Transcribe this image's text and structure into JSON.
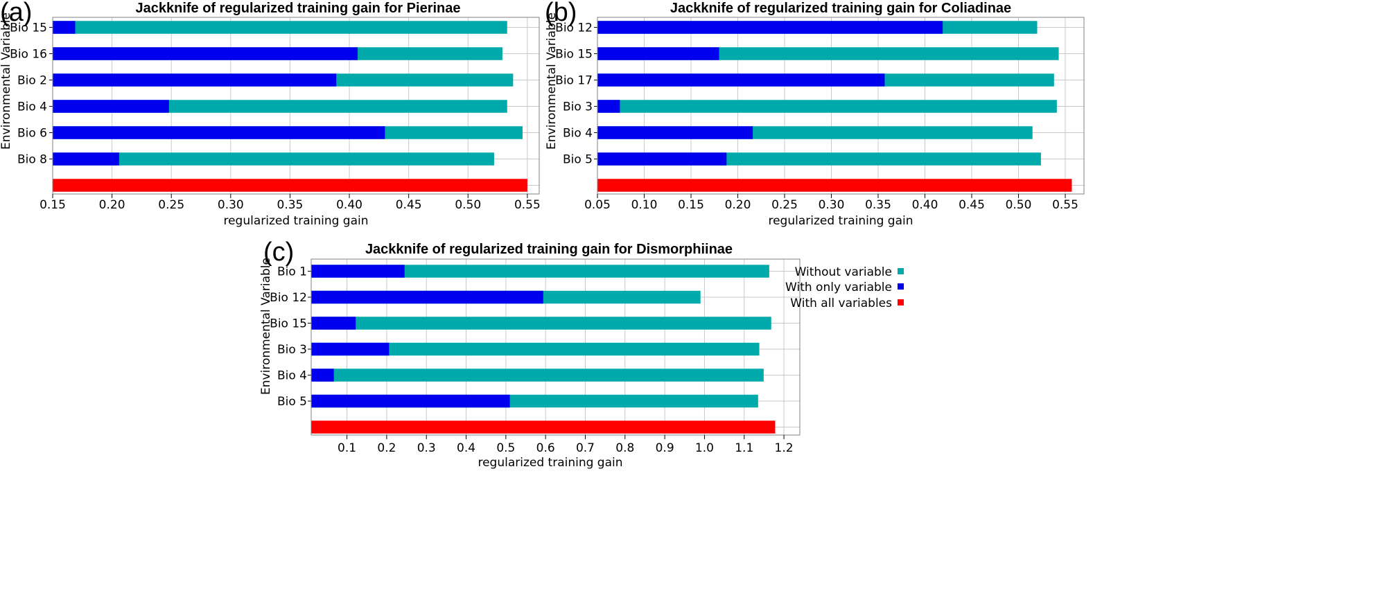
{
  "colors": {
    "without": "#00aaaa",
    "with_only": "#0000ee",
    "with_all": "#ff0000",
    "grid": "#c8c8c8",
    "frame": "#808080"
  },
  "legend": {
    "items": [
      {
        "label": "Without variable",
        "series": "without"
      },
      {
        "label": "With only variable",
        "series": "with_only"
      },
      {
        "label": "With all variables",
        "series": "with_all"
      }
    ]
  },
  "chart_data": [
    {
      "panel": "(a)",
      "type": "bar",
      "orientation": "horizontal",
      "title": "Jackknife of regularized training gain for Pierinae",
      "xlabel": "regularized training gain",
      "ylabel": "Environmental Variable",
      "xlim": [
        0.15,
        0.56
      ],
      "xticks": [
        0.15,
        0.2,
        0.25,
        0.3,
        0.35,
        0.4,
        0.45,
        0.5,
        0.55
      ],
      "xtick_labels": [
        "0.15",
        "0.20",
        "0.25",
        "0.30",
        "0.35",
        "0.40",
        "0.45",
        "0.50",
        "0.55"
      ],
      "grid": true,
      "categories": [
        "Bio 15",
        "Bio 16",
        "Bio 2",
        "Bio 4",
        "Bio 6",
        "Bio 8"
      ],
      "series": [
        {
          "name": "Without variable",
          "values": [
            0.533,
            0.529,
            0.538,
            0.533,
            0.546,
            0.522
          ]
        },
        {
          "name": "With only variable",
          "values": [
            0.169,
            0.407,
            0.389,
            0.248,
            0.43,
            0.206
          ]
        }
      ],
      "all_variables": 0.55
    },
    {
      "panel": "(b)",
      "type": "bar",
      "orientation": "horizontal",
      "title": "Jackknife of regularized training gain for Coliadinae",
      "xlabel": "regularized training gain",
      "ylabel": "Environmental Variable",
      "xlim": [
        0.05,
        0.57
      ],
      "xticks": [
        0.05,
        0.1,
        0.15,
        0.2,
        0.25,
        0.3,
        0.35,
        0.4,
        0.45,
        0.5,
        0.55
      ],
      "xtick_labels": [
        "0.05",
        "0.10",
        "0.15",
        "0.20",
        "0.25",
        "0.30",
        "0.35",
        "0.40",
        "0.45",
        "0.50",
        "0.55"
      ],
      "grid": true,
      "categories": [
        "Bio 12",
        "Bio 15",
        "Bio 17",
        "Bio 3",
        "Bio 4",
        "Bio 5"
      ],
      "series": [
        {
          "name": "Without variable",
          "values": [
            0.52,
            0.543,
            0.538,
            0.541,
            0.515,
            0.524
          ]
        },
        {
          "name": "With only variable",
          "values": [
            0.419,
            0.18,
            0.357,
            0.074,
            0.216,
            0.188
          ]
        }
      ],
      "all_variables": 0.557
    },
    {
      "panel": "(c)",
      "type": "bar",
      "orientation": "horizontal",
      "title": "Jackknife of regularized training gain for Dismorphiinae",
      "xlabel": "regularized training gain",
      "ylabel": "Environmental Variable",
      "xlim": [
        0.01,
        1.24
      ],
      "xticks": [
        0.1,
        0.2,
        0.3,
        0.4,
        0.5,
        0.6,
        0.7,
        0.8,
        0.9,
        1.0,
        1.1,
        1.2
      ],
      "xtick_labels": [
        "0.1",
        "0.2",
        "0.3",
        "0.4",
        "0.5",
        "0.6",
        "0.7",
        "0.8",
        "0.9",
        "1.0",
        "1.1",
        "1.2"
      ],
      "grid": true,
      "categories": [
        "Bio 1",
        "Bio 12",
        "Bio 15",
        "Bio 3",
        "Bio 4",
        "Bio 5"
      ],
      "series": [
        {
          "name": "Without variable",
          "values": [
            1.163,
            0.99,
            1.168,
            1.138,
            1.149,
            1.135
          ]
        },
        {
          "name": "With only variable",
          "values": [
            0.245,
            0.594,
            0.122,
            0.206,
            0.067,
            0.51
          ]
        }
      ],
      "all_variables": 1.178,
      "legend": "right"
    }
  ]
}
